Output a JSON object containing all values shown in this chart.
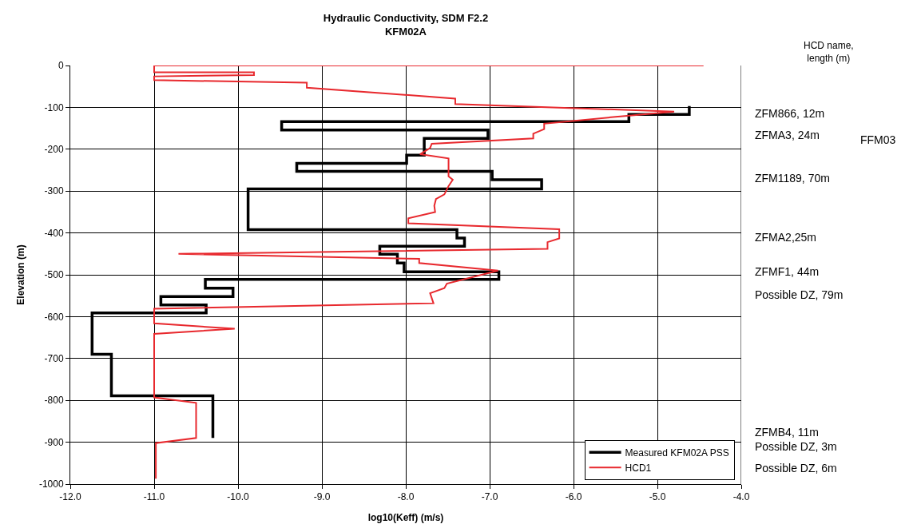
{
  "chart_data": {
    "type": "line",
    "title": "Hydraulic Conductivity, SDM F2.2\nKFM02A",
    "xlabel": "log10(Keff) (m/s)",
    "ylabel": "Elevation (m)",
    "xlim": [
      -12,
      -4
    ],
    "xticks": [
      {
        "value": -12,
        "label": "-12.0"
      },
      {
        "value": -11,
        "label": "-11.0"
      },
      {
        "value": -10,
        "label": "-10.0"
      },
      {
        "value": -9,
        "label": "-9.0"
      },
      {
        "value": -8,
        "label": "-8.0"
      },
      {
        "value": -7,
        "label": "-7.0"
      },
      {
        "value": -6,
        "label": "-6.0"
      },
      {
        "value": -5,
        "label": "-5.0"
      },
      {
        "value": -4,
        "label": "-4.0"
      }
    ],
    "ylim": [
      -1000,
      0
    ],
    "yticks": [
      0,
      -100,
      -200,
      -300,
      -400,
      -500,
      -600,
      -700,
      -800,
      -900,
      -1000
    ],
    "grid": true,
    "legend": "bottom right",
    "marker": "none",
    "line_style": "solid",
    "series": [
      {
        "name": "Measured KFM02A PSS",
        "color": "#000000",
        "x": [
          -4.62,
          -4.62,
          -5.34,
          -5.34,
          -9.48,
          -9.48,
          -7.02,
          -7.02,
          -7.78,
          -7.78,
          -7.99,
          -7.99,
          -9.3,
          -9.3,
          -6.97,
          -6.97,
          -6.38,
          -6.38,
          -9.88,
          -9.88,
          -7.39,
          -7.39,
          -7.3,
          -7.3,
          -8.31,
          -8.31,
          -8.1,
          -8.1,
          -8.02,
          -8.02,
          -6.89,
          -6.89,
          -10.39,
          -10.39,
          -10.06,
          -10.06,
          -10.92,
          -10.92,
          -10.38,
          -10.38,
          -11.74,
          -11.74,
          -11.51,
          -11.51,
          -10.3,
          -10.3
        ],
        "values": [
          -97,
          -117,
          -117,
          -134,
          -134,
          -154,
          -154,
          -174,
          -174,
          -214,
          -214,
          -234,
          -234,
          -253,
          -253,
          -273,
          -273,
          -295,
          -295,
          -392,
          -392,
          -412,
          -412,
          -432,
          -432,
          -451,
          -451,
          -472,
          -472,
          -493,
          -493,
          -511,
          -511,
          -532,
          -532,
          -552,
          -552,
          -572,
          -572,
          -591,
          -591,
          -690,
          -690,
          -789,
          -789,
          -890
        ]
      },
      {
        "name": "HCD1",
        "color": "#e8292e",
        "x": [
          -4.45,
          -11.0,
          -11.0,
          -9.81,
          -9.81,
          -11.0,
          -11.0,
          -9.18,
          -9.18,
          -7.41,
          -7.41,
          -4.8,
          -5.36,
          -6.35,
          -6.35,
          -6.48,
          -6.48,
          -7.69,
          -7.71,
          -7.83,
          -7.49,
          -7.49,
          -7.44,
          -7.49,
          -7.54,
          -7.64,
          -7.66,
          -7.65,
          -7.97,
          -7.97,
          -6.17,
          -6.17,
          -6.31,
          -6.31,
          -10.71,
          -7.84,
          -7.84,
          -6.9,
          -7.51,
          -7.54,
          -7.71,
          -7.67,
          -11.0,
          -11.0,
          -10.04,
          -11.0,
          -11.0,
          -10.5,
          -10.5,
          -10.98,
          -10.98
        ],
        "values": [
          0,
          0,
          -16,
          -16,
          -23,
          -26,
          -35,
          -41,
          -53,
          -79,
          -92,
          -110,
          -120,
          -139,
          -152,
          -163,
          -174,
          -187,
          -197,
          -212,
          -222,
          -265,
          -273,
          -288,
          -308,
          -319,
          -335,
          -350,
          -365,
          -377,
          -391,
          -413,
          -422,
          -438,
          -450,
          -462,
          -472,
          -490,
          -521,
          -532,
          -544,
          -568,
          -581,
          -616,
          -629,
          -641,
          -793,
          -806,
          -890,
          -902,
          -987
        ]
      }
    ],
    "annotations": [
      "HCD name,\nlength (m)",
      "ZFM866, 12m",
      "ZFMA3, 24m",
      "ZFM1189, 70m",
      "ZFMA2,25m",
      "ZFMF1, 44m",
      "Possible DZ, 79m",
      "FFM03",
      "ZFMB4, 11m",
      "Possible DZ, 3m",
      "Possible DZ, 6m"
    ]
  }
}
